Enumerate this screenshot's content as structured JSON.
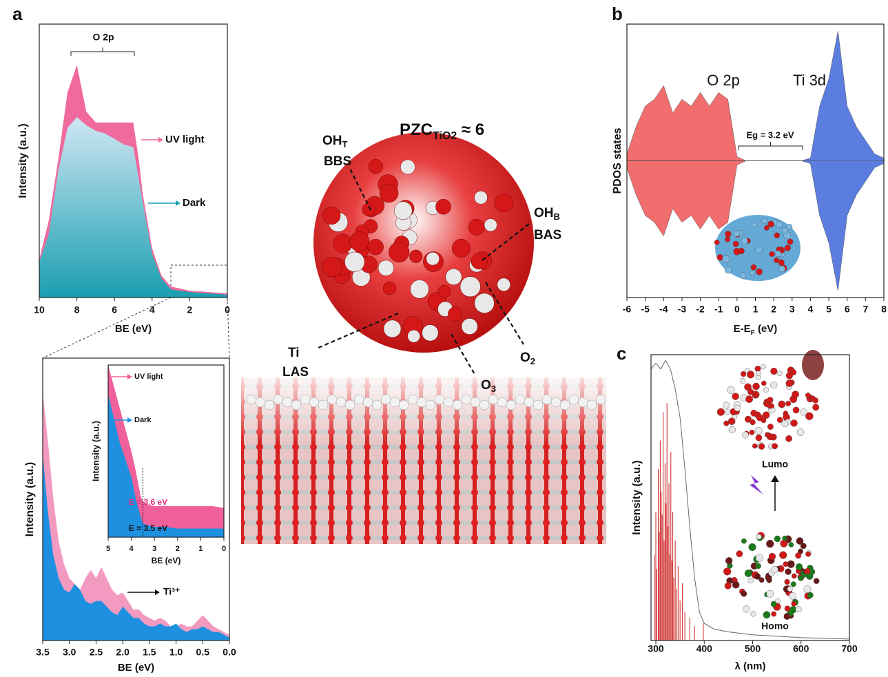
{
  "panel_labels": [
    "a",
    "b",
    "c"
  ],
  "structure_labels": [
    {
      "text": "PZC",
      "sub": "TiO2",
      "tail": " ≈ 6"
    },
    {
      "text": "OH",
      "sub": "T"
    },
    {
      "text": "BBS"
    },
    {
      "text": "OH",
      "sub": "B"
    },
    {
      "text": "BAS"
    },
    {
      "text": "Ti"
    },
    {
      "text": "LAS"
    },
    {
      "text": "O",
      "sub": "2"
    },
    {
      "text": "O",
      "sub": "3"
    }
  ],
  "chart_data": [
    {
      "type": "area",
      "x_label": "BE (eV)",
      "y_label": "Intensity (a.u.)",
      "xlim": [
        10,
        0
      ],
      "xticks": [
        10,
        8,
        6,
        4,
        2,
        0
      ],
      "ylim": [
        0,
        100
      ],
      "x": [
        10,
        9.5,
        9,
        8.5,
        8,
        7.5,
        7,
        6.5,
        6,
        5.5,
        5,
        4.7,
        4.5,
        4,
        3.5,
        3,
        2,
        1,
        0
      ],
      "series": [
        {
          "name": "UV light",
          "color": "#f06a9e",
          "values": [
            14,
            28,
            50,
            75,
            85,
            68,
            64,
            64,
            64,
            64,
            64,
            50,
            38,
            18,
            8,
            4,
            2.5,
            2,
            1.5
          ]
        },
        {
          "name": "Dark",
          "color": "#1a9fb0",
          "fill_gradient": true,
          "values": [
            13,
            23,
            46,
            62,
            66,
            63,
            61,
            60,
            58,
            56,
            55,
            43,
            35,
            16,
            7,
            3,
            2,
            1.5,
            1
          ]
        }
      ],
      "annotations": [
        "O 2p"
      ]
    },
    {
      "type": "area",
      "x_label": "BE (eV)",
      "y_label": "Intensity (a.u.)",
      "xlim": [
        3.5,
        0
      ],
      "ylim": [
        0,
        100
      ],
      "xticks": [
        3.5,
        {
          "value": 3,
          "label": "3.0"
        },
        2.5,
        {
          "value": 2,
          "label": "2.0"
        },
        1.5,
        {
          "value": 1,
          "label": "1.0"
        },
        0.5,
        {
          "value": 0,
          "label": "0.0"
        }
      ],
      "x": [
        3.5,
        3.4,
        3.3,
        3.2,
        3.1,
        3.0,
        2.9,
        2.8,
        2.7,
        2.6,
        2.5,
        2.4,
        2.3,
        2.2,
        2.1,
        2.0,
        1.9,
        1.8,
        1.7,
        1.6,
        1.5,
        1.4,
        1.3,
        1.2,
        1.1,
        1.0,
        0.9,
        0.8,
        0.7,
        0.6,
        0.5,
        0.4,
        0.3,
        0.2,
        0.1,
        0.0
      ],
      "series": [
        {
          "name": "UV light",
          "color": "#f39ac0",
          "values": [
            88,
            70,
            50,
            35,
            27,
            22,
            20,
            18,
            22,
            25,
            22,
            26,
            22,
            18,
            16,
            17,
            14,
            11,
            11,
            9,
            8,
            7,
            8,
            7,
            5,
            5,
            6,
            5,
            5,
            7,
            9,
            7,
            5,
            4,
            3,
            2
          ]
        },
        {
          "name": "Dark",
          "color": "#1e90e0",
          "values": [
            66,
            45,
            30,
            22,
            18,
            17,
            20,
            18,
            14,
            13,
            14,
            14,
            12,
            10,
            9,
            12,
            10,
            8,
            8,
            6,
            5,
            5,
            6,
            5,
            5,
            6,
            4,
            3,
            4,
            4,
            5,
            4,
            3,
            3,
            2,
            1
          ]
        }
      ],
      "annotations": [
        "Ti³⁺"
      ]
    },
    {
      "type": "area",
      "x_label": "BE (eV)",
      "y_label": "Intensity (a.u.)",
      "xlim": [
        5,
        0
      ],
      "xticks": [
        5,
        4,
        3,
        2,
        1,
        0
      ],
      "ylim": [
        0,
        100
      ],
      "x": [
        5,
        4.5,
        4,
        3.8,
        3.6,
        3.5,
        3.3,
        3,
        2.5,
        2,
        1.5,
        1,
        0.5,
        0
      ],
      "series": [
        {
          "name": "UV light",
          "color": "#f0609a",
          "values": [
            100,
            75,
            50,
            38,
            24,
            21,
            19,
            18,
            18,
            18,
            18,
            18,
            18,
            17
          ]
        },
        {
          "name": "Dark",
          "color": "#1e90e0",
          "values": [
            83,
            55,
            35,
            22,
            12,
            8,
            7,
            6,
            6,
            5,
            5,
            5,
            5,
            5
          ]
        }
      ],
      "vline": 3.5,
      "annotations": [
        "E = 3.6 eV",
        "E = 3.5 eV"
      ]
    },
    {
      "type": "area",
      "symmetric": true,
      "x_label": "E-E",
      "x_label_sub": "F",
      "x_label_tail": " (eV)",
      "y_label": "PDOS states",
      "xlim": [
        -6,
        8
      ],
      "xticks": [
        -6,
        -5,
        -4,
        -3,
        -2,
        -1,
        0,
        1,
        2,
        3,
        4,
        5,
        6,
        7,
        8
      ],
      "ylim": [
        -100,
        100
      ],
      "x": [
        -6,
        -5.5,
        -5,
        -4.5,
        -4,
        -3.5,
        -3,
        -2.5,
        -2,
        -1.5,
        -1,
        -0.5,
        0,
        0.5,
        1,
        1.5,
        2,
        2.5,
        3,
        3.5,
        4,
        4.5,
        5,
        5.5,
        6,
        6.5,
        7,
        7.5,
        8
      ],
      "series": [
        {
          "name": "O 2p",
          "color": "#f26d6d",
          "values": [
            5,
            25,
            40,
            45,
            55,
            35,
            45,
            40,
            50,
            40,
            50,
            45,
            3,
            0,
            0,
            0,
            0,
            0,
            0,
            0,
            0,
            3,
            6,
            10,
            4,
            2,
            1,
            0,
            0
          ]
        },
        {
          "name": "Ti 3d",
          "color": "#5b7de0",
          "values": [
            0,
            0,
            0,
            0,
            0,
            0,
            0,
            0,
            0,
            0,
            0,
            0,
            0,
            0,
            0,
            0,
            0,
            0,
            0,
            0,
            2,
            40,
            60,
            95,
            40,
            25,
            15,
            5,
            2
          ]
        }
      ],
      "annotations": [
        "Eg = 3.2 eV"
      ]
    },
    {
      "type": "line",
      "x_label": "λ (nm)",
      "y_label": "Intensity (a.u.)",
      "xlim": [
        290,
        700
      ],
      "xticks": [
        300,
        400,
        500,
        600,
        700
      ],
      "ylim": [
        0,
        100
      ],
      "series": [
        {
          "color": "#cc2020",
          "style": "stick",
          "x": [
            297,
            300,
            302,
            305,
            307,
            309,
            311,
            313,
            315,
            317,
            319,
            321,
            323,
            325,
            327,
            329,
            331,
            333,
            335,
            337,
            340,
            343,
            346,
            350,
            355,
            360,
            370,
            380,
            398
          ],
          "values": [
            30,
            45,
            25,
            60,
            38,
            70,
            52,
            44,
            80,
            35,
            62,
            48,
            83,
            40,
            55,
            30,
            66,
            28,
            45,
            22,
            35,
            18,
            26,
            14,
            20,
            10,
            8,
            5,
            6
          ]
        },
        {
          "color": "#666666",
          "style": "line",
          "x": [
            290,
            300,
            310,
            320,
            330,
            340,
            350,
            360,
            370,
            380,
            390,
            400,
            420,
            450,
            500,
            600,
            700
          ],
          "values": [
            95,
            97,
            95,
            98,
            95,
            88,
            78,
            60,
            40,
            22,
            10,
            6,
            4,
            3,
            2,
            1,
            0.5
          ]
        }
      ],
      "annotations": [
        "Lumo",
        "Homo"
      ]
    }
  ]
}
